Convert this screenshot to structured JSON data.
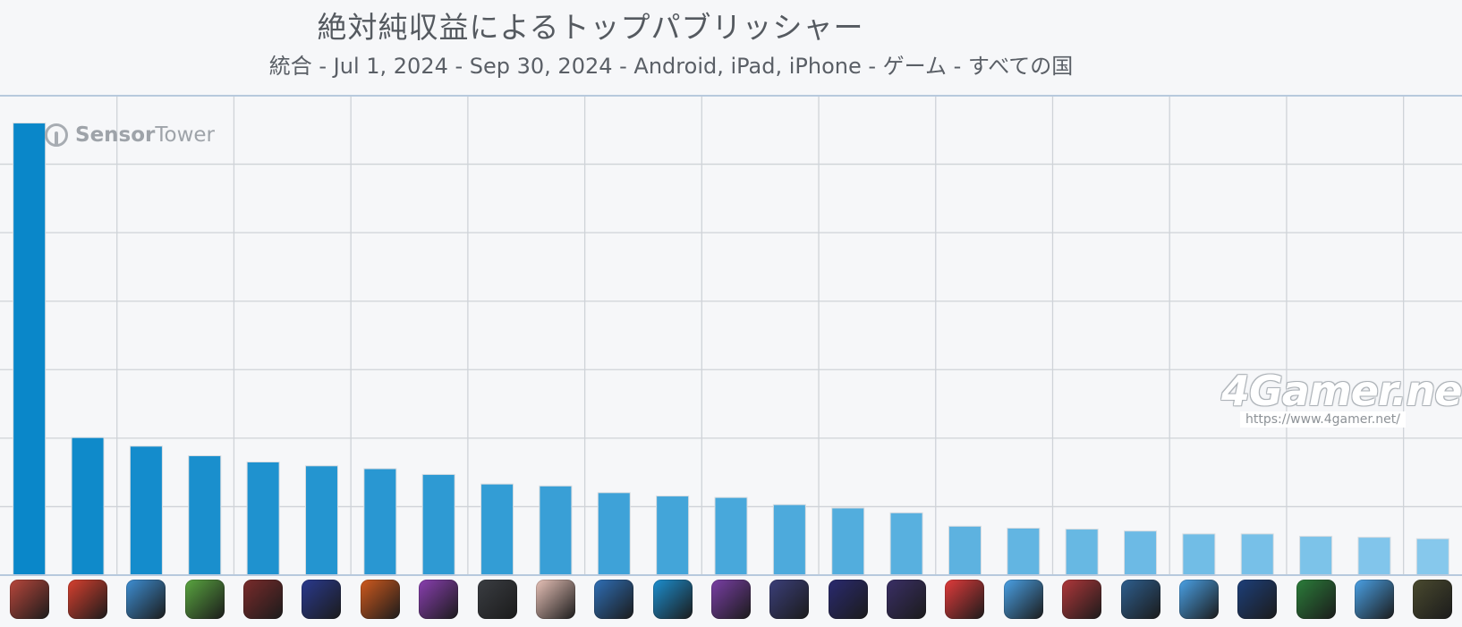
{
  "chart_data": {
    "type": "bar",
    "title": "絶対純収益によるトップパブリッシャー",
    "subtitle": "統合 - Jul 1, 2024 - Sep 30, 2024 - Android, iPad, iPhone - ゲーム - すべての国",
    "xlabel": "",
    "ylabel": "",
    "ylim": [
      0,
      100
    ],
    "grid": true,
    "legend": "none",
    "categories_note": "x-axis shows app icons only",
    "values": [
      94.3,
      28.7,
      26.9,
      24.9,
      23.6,
      22.8,
      22.2,
      21.0,
      19.0,
      18.6,
      17.2,
      16.5,
      16.2,
      14.7,
      14.0,
      13.0,
      10.2,
      9.8,
      9.6,
      9.2,
      8.6,
      8.6,
      8.1,
      7.9,
      7.6
    ],
    "colors": {
      "bar_start": "#0a87c9",
      "bar_end": "#86c8ec",
      "grid": "#cfd3d8",
      "axis": "#b7c9dd"
    }
  },
  "watermarks": {
    "sensortower_a": "Sensor",
    "sensortower_b": "Tower",
    "fourgamer": "4Gamer.net",
    "fourgamer_url": "https://www.4gamer.net/"
  },
  "icons": [
    {
      "name": "app-icon-1",
      "color": "#b9473c"
    },
    {
      "name": "app-icon-2",
      "color": "#d8402f"
    },
    {
      "name": "app-icon-3",
      "color": "#3e8fd4"
    },
    {
      "name": "app-icon-4",
      "color": "#5aa640"
    },
    {
      "name": "app-icon-5",
      "color": "#7a2b2b"
    },
    {
      "name": "app-icon-6",
      "color": "#2a3a8f"
    },
    {
      "name": "app-icon-7",
      "color": "#d05a1e"
    },
    {
      "name": "app-icon-8",
      "color": "#8a3fb1"
    },
    {
      "name": "app-icon-9",
      "color": "#3a3d42"
    },
    {
      "name": "app-icon-10",
      "color": "#e8c2b8"
    },
    {
      "name": "app-icon-11",
      "color": "#2f6fb7"
    },
    {
      "name": "app-icon-12",
      "color": "#1c8fd0"
    },
    {
      "name": "app-icon-13",
      "color": "#7a3fa6"
    },
    {
      "name": "app-icon-14",
      "color": "#3b3f7a"
    },
    {
      "name": "app-icon-15",
      "color": "#2a2a70"
    },
    {
      "name": "app-icon-16",
      "color": "#3a2f66"
    },
    {
      "name": "app-icon-17",
      "color": "#e23b3b"
    },
    {
      "name": "app-icon-18",
      "color": "#4aa1e6"
    },
    {
      "name": "app-icon-19",
      "color": "#b0373a"
    },
    {
      "name": "app-icon-20",
      "color": "#2e5f8f"
    },
    {
      "name": "app-icon-21",
      "color": "#4aa1e6"
    },
    {
      "name": "app-icon-22",
      "color": "#1d3f7a"
    },
    {
      "name": "app-icon-23",
      "color": "#2b7d3a"
    },
    {
      "name": "app-icon-24",
      "color": "#4aa1e6"
    },
    {
      "name": "app-icon-25",
      "color": "#4a4a2f"
    }
  ]
}
